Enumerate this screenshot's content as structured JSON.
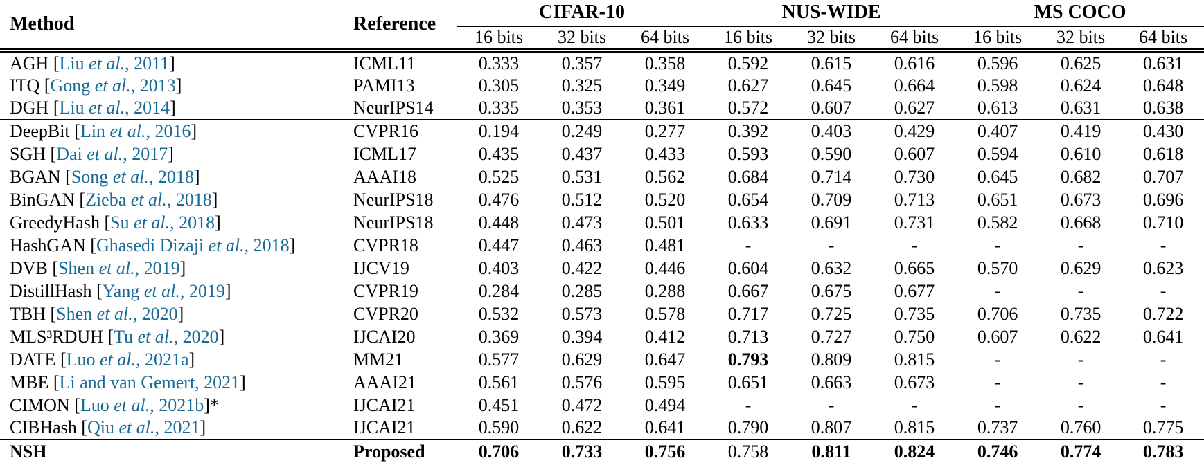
{
  "colors": {
    "background": "#ffffff",
    "text": "#000000",
    "citation_link": "#1a6a96"
  },
  "table": {
    "columns": {
      "method": "Method",
      "reference": "Reference",
      "datasets": [
        {
          "label": "CIFAR-10",
          "bits": [
            "16 bits",
            "32 bits",
            "64 bits"
          ]
        },
        {
          "label": "NUS-WIDE",
          "bits": [
            "16 bits",
            "32 bits",
            "64 bits"
          ]
        },
        {
          "label": "MS COCO",
          "bits": [
            "16 bits",
            "32 bits",
            "64 bits"
          ]
        }
      ]
    },
    "groups": [
      {
        "rows": [
          {
            "method": {
              "prefix": "AGH",
              "citation": "Liu et al., 2011",
              "suffix": ""
            },
            "reference": "ICML11",
            "values": [
              "0.333",
              "0.357",
              "0.358",
              "0.592",
              "0.615",
              "0.616",
              "0.596",
              "0.625",
              "0.631"
            ],
            "bold_values": [],
            "bold_row": false
          },
          {
            "method": {
              "prefix": "ITQ",
              "citation": "Gong et al., 2013",
              "suffix": ""
            },
            "reference": "PAMI13",
            "values": [
              "0.305",
              "0.325",
              "0.349",
              "0.627",
              "0.645",
              "0.664",
              "0.598",
              "0.624",
              "0.648"
            ],
            "bold_values": [],
            "bold_row": false
          },
          {
            "method": {
              "prefix": "DGH",
              "citation": "Liu et al., 2014",
              "suffix": ""
            },
            "reference": "NeurIPS14",
            "values": [
              "0.335",
              "0.353",
              "0.361",
              "0.572",
              "0.607",
              "0.627",
              "0.613",
              "0.631",
              "0.638"
            ],
            "bold_values": [],
            "bold_row": false
          }
        ]
      },
      {
        "rows": [
          {
            "method": {
              "prefix": "DeepBit",
              "citation": "Lin et al., 2016",
              "suffix": ""
            },
            "reference": "CVPR16",
            "values": [
              "0.194",
              "0.249",
              "0.277",
              "0.392",
              "0.403",
              "0.429",
              "0.407",
              "0.419",
              "0.430"
            ],
            "bold_values": [],
            "bold_row": false
          },
          {
            "method": {
              "prefix": "SGH",
              "citation": "Dai et al., 2017",
              "suffix": ""
            },
            "reference": "ICML17",
            "values": [
              "0.435",
              "0.437",
              "0.433",
              "0.593",
              "0.590",
              "0.607",
              "0.594",
              "0.610",
              "0.618"
            ],
            "bold_values": [],
            "bold_row": false
          },
          {
            "method": {
              "prefix": "BGAN",
              "citation": "Song et al., 2018",
              "suffix": ""
            },
            "reference": "AAAI18",
            "values": [
              "0.525",
              "0.531",
              "0.562",
              "0.684",
              "0.714",
              "0.730",
              "0.645",
              "0.682",
              "0.707"
            ],
            "bold_values": [],
            "bold_row": false
          },
          {
            "method": {
              "prefix": "BinGAN",
              "citation": "Zieba et al., 2018",
              "suffix": ""
            },
            "reference": "NeurIPS18",
            "values": [
              "0.476",
              "0.512",
              "0.520",
              "0.654",
              "0.709",
              "0.713",
              "0.651",
              "0.673",
              "0.696"
            ],
            "bold_values": [],
            "bold_row": false
          },
          {
            "method": {
              "prefix": "GreedyHash",
              "citation": "Su et al., 2018",
              "suffix": ""
            },
            "reference": "NeurIPS18",
            "values": [
              "0.448",
              "0.473",
              "0.501",
              "0.633",
              "0.691",
              "0.731",
              "0.582",
              "0.668",
              "0.710"
            ],
            "bold_values": [],
            "bold_row": false
          },
          {
            "method": {
              "prefix": "HashGAN",
              "citation": "Ghasedi Dizaji et al., 2018",
              "suffix": ""
            },
            "reference": "CVPR18",
            "values": [
              "0.447",
              "0.463",
              "0.481",
              "-",
              "-",
              "-",
              "-",
              "-",
              "-"
            ],
            "bold_values": [],
            "bold_row": false
          },
          {
            "method": {
              "prefix": "DVB",
              "citation": "Shen et al., 2019",
              "suffix": ""
            },
            "reference": "IJCV19",
            "values": [
              "0.403",
              "0.422",
              "0.446",
              "0.604",
              "0.632",
              "0.665",
              "0.570",
              "0.629",
              "0.623"
            ],
            "bold_values": [],
            "bold_row": false
          },
          {
            "method": {
              "prefix": "DistillHash",
              "citation": "Yang et al., 2019",
              "suffix": ""
            },
            "reference": "CVPR19",
            "values": [
              "0.284",
              "0.285",
              "0.288",
              "0.667",
              "0.675",
              "0.677",
              "-",
              "-",
              "-"
            ],
            "bold_values": [],
            "bold_row": false
          },
          {
            "method": {
              "prefix": "TBH",
              "citation": "Shen et al., 2020",
              "suffix": ""
            },
            "reference": "CVPR20",
            "values": [
              "0.532",
              "0.573",
              "0.578",
              "0.717",
              "0.725",
              "0.735",
              "0.706",
              "0.735",
              "0.722"
            ],
            "bold_values": [],
            "bold_row": false
          },
          {
            "method": {
              "prefix": "MLS³RDUH",
              "citation": "Tu et al., 2020",
              "suffix": ""
            },
            "reference": "IJCAI20",
            "values": [
              "0.369",
              "0.394",
              "0.412",
              "0.713",
              "0.727",
              "0.750",
              "0.607",
              "0.622",
              "0.641"
            ],
            "bold_values": [],
            "bold_row": false
          },
          {
            "method": {
              "prefix": "DATE",
              "citation": "Luo et al., 2021a",
              "suffix": ""
            },
            "reference": "MM21",
            "values": [
              "0.577",
              "0.629",
              "0.647",
              "0.793",
              "0.809",
              "0.815",
              "-",
              "-",
              "-"
            ],
            "bold_values": [
              3
            ],
            "bold_row": false
          },
          {
            "method": {
              "prefix": "MBE",
              "citation": "Li and van Gemert, 2021",
              "suffix": ""
            },
            "reference": "AAAI21",
            "values": [
              "0.561",
              "0.576",
              "0.595",
              "0.651",
              "0.663",
              "0.673",
              "-",
              "-",
              "-"
            ],
            "bold_values": [],
            "bold_row": false
          },
          {
            "method": {
              "prefix": "CIMON",
              "citation": "Luo et al., 2021b",
              "suffix": "*"
            },
            "reference": "IJCAI21",
            "values": [
              "0.451",
              "0.472",
              "0.494",
              "-",
              "-",
              "-",
              "-",
              "-",
              "-"
            ],
            "bold_values": [],
            "bold_row": false
          },
          {
            "method": {
              "prefix": "CIBHash",
              "citation": "Qiu et al., 2021",
              "suffix": ""
            },
            "reference": "IJCAI21",
            "values": [
              "0.590",
              "0.622",
              "0.641",
              "0.790",
              "0.807",
              "0.815",
              "0.737",
              "0.760",
              "0.775"
            ],
            "bold_values": [],
            "bold_row": false
          }
        ]
      },
      {
        "rows": [
          {
            "method": {
              "prefix": "NSH",
              "citation": null,
              "suffix": ""
            },
            "reference": "Proposed",
            "values": [
              "0.706",
              "0.733",
              "0.756",
              "0.758",
              "0.811",
              "0.824",
              "0.746",
              "0.774",
              "0.783"
            ],
            "bold_values": [
              0,
              1,
              2,
              4,
              5,
              6,
              7,
              8
            ],
            "bold_row": true
          }
        ]
      }
    ]
  }
}
